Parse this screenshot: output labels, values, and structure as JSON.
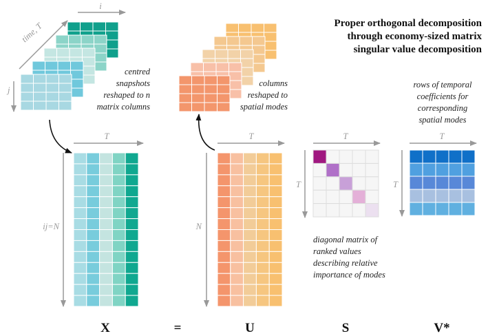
{
  "title": [
    "Proper orthogonal decomposition",
    "through economy-sized matrix",
    "singular value decomposition"
  ],
  "snapshots": {
    "axis_i": "i",
    "axis_time": "time, T",
    "axis_j": "j",
    "note": [
      "centred",
      "snapshots",
      "reshaped to n",
      "matrix columns"
    ]
  },
  "x_matrix": {
    "axis_cols": "T",
    "axis_rows": "ij=N"
  },
  "modes": {
    "note": [
      "columns",
      "reshaped to",
      "spatial modes"
    ]
  },
  "u_matrix": {
    "axis_cols": "T",
    "axis_rows": "N"
  },
  "s_matrix": {
    "axis_cols": "T",
    "axis_rows": "T",
    "note": [
      "diagonal matrix of",
      "ranked values",
      "describing relative",
      "importance of modes"
    ]
  },
  "v_matrix": {
    "axis_cols": "T",
    "axis_rows": "T",
    "note": [
      "rows of temporal",
      "coefficients for",
      "corresponding",
      "spatial modes"
    ]
  },
  "equation": {
    "x": "X",
    "equals": "=",
    "u": "U",
    "s": "S",
    "v": "V*"
  }
}
